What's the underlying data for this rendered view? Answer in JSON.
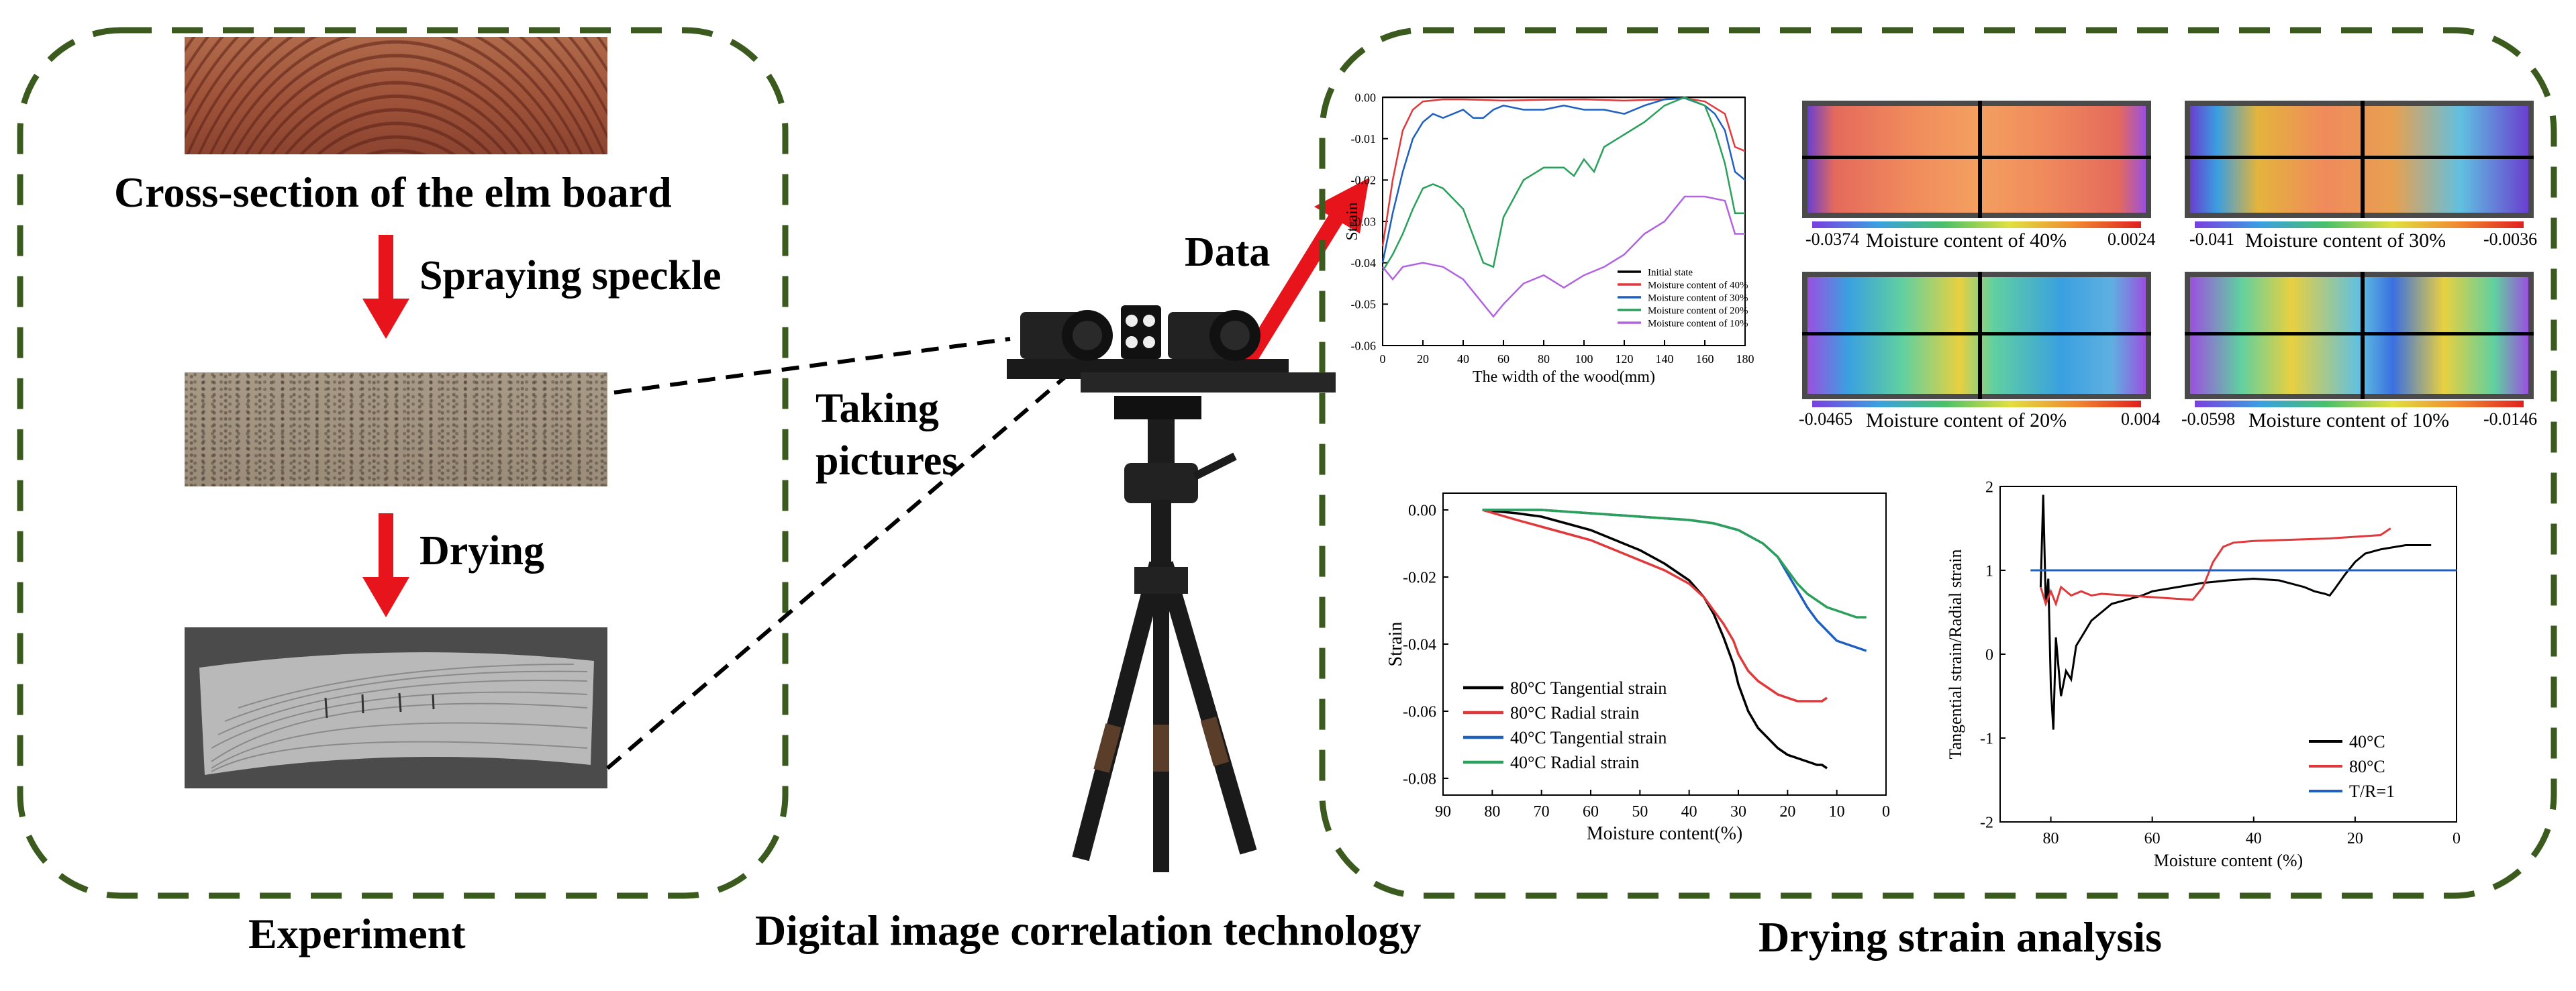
{
  "experiment": {
    "caption": "Experiment",
    "cross_section_label": "Cross-section of the elm board",
    "step1": "Spraying speckle",
    "step2": "Drying"
  },
  "dic": {
    "caption": "Digital image correlation technology",
    "taking_pictures_line1": "Taking",
    "taking_pictures_line2": "pictures",
    "data_label": "Data"
  },
  "analysis": {
    "caption": "Drying strain analysis",
    "fields": [
      {
        "label": "Moisture content of 40%",
        "min": "-0.0374",
        "max": "0.0024"
      },
      {
        "label": "Moisture content of 30%",
        "min": "-0.041",
        "max": "-0.0036"
      },
      {
        "label": "Moisture content of 20%",
        "min": "-0.0465",
        "max": "0.004"
      },
      {
        "label": "Moisture content of 10%",
        "min": "-0.0598",
        "max": "-0.0146"
      }
    ]
  },
  "colors": {
    "border": "#3a5a1e",
    "arrow": "#e8141c",
    "black_series": "#000000",
    "red_series": "#e0393b",
    "blue_series": "#1f5fbf",
    "green_series": "#2aa05a",
    "purple_series": "#b264e0"
  },
  "chart_data": [
    {
      "type": "line",
      "xlabel": "The width of the wood(mm)",
      "ylabel": "Strain",
      "xlim": [
        0,
        180
      ],
      "ylim": [
        -0.06,
        0.0
      ],
      "xticks": [
        "0",
        "20",
        "40",
        "60",
        "80",
        "100",
        "120",
        "140",
        "160",
        "180"
      ],
      "yticks": [
        "0.00",
        "-0.01",
        "-0.02",
        "-0.03",
        "-0.04",
        "-0.05",
        "-0.06"
      ],
      "legend_position": "bottom-right",
      "series": [
        {
          "name": "Initial state",
          "color": "#000000",
          "x": [
            0,
            180
          ],
          "y": [
            0.0,
            0.0
          ]
        },
        {
          "name": "Moisture content of 40%",
          "color": "#e0393b",
          "x": [
            0,
            5,
            10,
            15,
            20,
            30,
            40,
            60,
            80,
            100,
            120,
            140,
            150,
            160,
            170,
            175,
            180
          ],
          "y": [
            -0.036,
            -0.02,
            -0.008,
            -0.003,
            -0.001,
            -0.0005,
            -0.0005,
            -0.0008,
            -0.0006,
            -0.0005,
            -0.0008,
            -0.0005,
            -0.0002,
            -0.001,
            -0.004,
            -0.012,
            -0.013
          ]
        },
        {
          "name": "Moisture content of 30%",
          "color": "#1f5fbf",
          "x": [
            0,
            5,
            10,
            15,
            20,
            25,
            30,
            40,
            45,
            50,
            55,
            60,
            70,
            80,
            90,
            100,
            110,
            120,
            130,
            140,
            150,
            160,
            165,
            170,
            175,
            180
          ],
          "y": [
            -0.04,
            -0.028,
            -0.018,
            -0.01,
            -0.006,
            -0.004,
            -0.005,
            -0.003,
            -0.005,
            -0.005,
            -0.003,
            -0.002,
            -0.003,
            -0.003,
            -0.002,
            -0.003,
            -0.003,
            -0.004,
            -0.002,
            -0.0005,
            -0.0002,
            -0.002,
            -0.004,
            -0.008,
            -0.018,
            -0.02
          ]
        },
        {
          "name": "Moisture content of 20%",
          "color": "#2aa05a",
          "x": [
            0,
            5,
            10,
            15,
            20,
            25,
            30,
            40,
            50,
            55,
            60,
            70,
            80,
            90,
            95,
            100,
            105,
            110,
            120,
            130,
            140,
            150,
            160,
            165,
            170,
            175,
            180
          ],
          "y": [
            -0.042,
            -0.038,
            -0.033,
            -0.027,
            -0.022,
            -0.021,
            -0.022,
            -0.027,
            -0.04,
            -0.041,
            -0.029,
            -0.02,
            -0.017,
            -0.017,
            -0.019,
            -0.015,
            -0.018,
            -0.012,
            -0.009,
            -0.006,
            -0.002,
            0.0,
            -0.002,
            -0.008,
            -0.016,
            -0.028,
            -0.028
          ]
        },
        {
          "name": "Moisture content of 10%",
          "color": "#b264e0",
          "x": [
            0,
            5,
            10,
            20,
            30,
            40,
            50,
            55,
            60,
            70,
            80,
            90,
            100,
            110,
            120,
            130,
            140,
            150,
            160,
            170,
            175,
            180
          ],
          "y": [
            -0.041,
            -0.044,
            -0.041,
            -0.04,
            -0.041,
            -0.044,
            -0.05,
            -0.053,
            -0.05,
            -0.045,
            -0.043,
            -0.046,
            -0.043,
            -0.041,
            -0.038,
            -0.033,
            -0.03,
            -0.024,
            -0.024,
            -0.025,
            -0.033,
            -0.033
          ]
        }
      ]
    },
    {
      "type": "line",
      "xlabel": "Moisture content(%)",
      "ylabel": "Strain",
      "xlim": [
        90,
        0
      ],
      "ylim": [
        -0.085,
        0.005
      ],
      "xticks": [
        "90",
        "80",
        "70",
        "60",
        "50",
        "40",
        "30",
        "20",
        "10",
        "0"
      ],
      "yticks": [
        "0.00",
        "-0.02",
        "-0.04",
        "-0.06",
        "-0.08"
      ],
      "legend_position": "bottom-left",
      "series": [
        {
          "name": "80°C Tangential strain",
          "color": "#000000",
          "x": [
            82,
            75,
            70,
            65,
            60,
            55,
            50,
            45,
            40,
            37,
            35,
            33,
            31,
            30,
            28,
            26,
            24,
            22,
            20,
            18,
            16,
            14,
            13,
            12
          ],
          "y": [
            0.0,
            -0.001,
            -0.002,
            -0.004,
            -0.006,
            -0.009,
            -0.012,
            -0.016,
            -0.021,
            -0.026,
            -0.031,
            -0.038,
            -0.046,
            -0.052,
            -0.06,
            -0.065,
            -0.068,
            -0.071,
            -0.073,
            -0.074,
            -0.075,
            -0.076,
            -0.076,
            -0.077
          ]
        },
        {
          "name": "80°C Radial strain",
          "color": "#e0393b",
          "x": [
            82,
            75,
            70,
            65,
            60,
            55,
            50,
            45,
            40,
            37,
            35,
            33,
            31,
            30,
            28,
            26,
            24,
            22,
            20,
            18,
            16,
            14,
            13,
            12
          ],
          "y": [
            0.0,
            -0.003,
            -0.005,
            -0.007,
            -0.009,
            -0.012,
            -0.015,
            -0.018,
            -0.022,
            -0.026,
            -0.03,
            -0.034,
            -0.039,
            -0.043,
            -0.048,
            -0.051,
            -0.053,
            -0.055,
            -0.056,
            -0.057,
            -0.057,
            -0.057,
            -0.057,
            -0.056
          ]
        },
        {
          "name": "40°C Tangential strain",
          "color": "#1f5fbf",
          "x": [
            82,
            70,
            60,
            50,
            40,
            35,
            30,
            25,
            22,
            20,
            18,
            16,
            14,
            12,
            10,
            8,
            6,
            4
          ],
          "y": [
            0.0,
            0.0,
            -0.001,
            -0.002,
            -0.003,
            -0.004,
            -0.006,
            -0.01,
            -0.014,
            -0.019,
            -0.024,
            -0.029,
            -0.033,
            -0.036,
            -0.039,
            -0.04,
            -0.041,
            -0.042
          ]
        },
        {
          "name": "40°C Radial strain",
          "color": "#2aa05a",
          "x": [
            82,
            70,
            60,
            50,
            40,
            35,
            30,
            25,
            22,
            20,
            18,
            16,
            14,
            12,
            10,
            8,
            6,
            4
          ],
          "y": [
            0.0,
            0.0,
            -0.001,
            -0.002,
            -0.003,
            -0.004,
            -0.006,
            -0.01,
            -0.014,
            -0.018,
            -0.022,
            -0.025,
            -0.027,
            -0.029,
            -0.03,
            -0.031,
            -0.032,
            -0.032
          ]
        }
      ]
    },
    {
      "type": "line",
      "xlabel": "Moisture content (%)",
      "ylabel": "Tangential strain/Radial strain",
      "xlim": [
        90,
        0
      ],
      "ylim": [
        -2,
        2
      ],
      "xticks": [
        "80",
        "60",
        "40",
        "20",
        "0"
      ],
      "yticks": [
        "2",
        "1",
        "0",
        "-1",
        "-2"
      ],
      "legend_position": "bottom-right",
      "series": [
        {
          "name": "40°C",
          "color": "#000000",
          "x": [
            82,
            81.5,
            81,
            80.5,
            80,
            79.5,
            79,
            78,
            77,
            76,
            75,
            74,
            72,
            70,
            68,
            65,
            62,
            60,
            55,
            50,
            45,
            40,
            35,
            30,
            28,
            26,
            25,
            24,
            22,
            20,
            18,
            15,
            12,
            10,
            8,
            5
          ],
          "y": [
            0.8,
            1.9,
            0.6,
            0.9,
            -0.4,
            -0.9,
            0.2,
            -0.5,
            -0.2,
            -0.3,
            0.1,
            0.2,
            0.4,
            0.5,
            0.6,
            0.65,
            0.7,
            0.75,
            0.8,
            0.85,
            0.88,
            0.9,
            0.88,
            0.8,
            0.75,
            0.72,
            0.7,
            0.78,
            0.95,
            1.1,
            1.2,
            1.25,
            1.28,
            1.3,
            1.3,
            1.3
          ]
        },
        {
          "name": "80°C",
          "color": "#e0393b",
          "x": [
            82,
            81,
            80,
            79,
            78,
            76,
            74,
            72,
            70,
            65,
            60,
            55,
            52,
            50,
            48,
            46,
            44,
            42,
            40,
            35,
            30,
            25,
            20,
            15,
            13
          ],
          "y": [
            0.8,
            0.6,
            0.75,
            0.6,
            0.8,
            0.7,
            0.75,
            0.7,
            0.72,
            0.7,
            0.68,
            0.66,
            0.65,
            0.8,
            1.1,
            1.28,
            1.33,
            1.34,
            1.35,
            1.36,
            1.37,
            1.38,
            1.4,
            1.42,
            1.5
          ]
        },
        {
          "name": "T/R=1",
          "color": "#1f5fbf",
          "x": [
            84,
            0
          ],
          "y": [
            1,
            1
          ]
        }
      ]
    }
  ]
}
